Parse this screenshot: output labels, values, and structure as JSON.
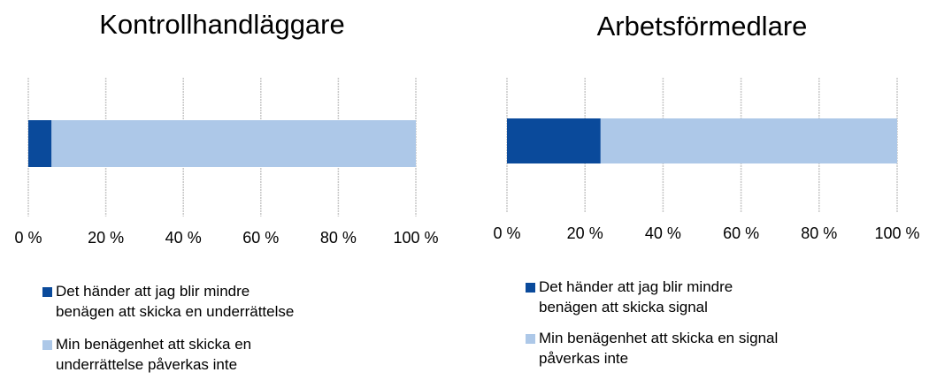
{
  "chart_data": [
    {
      "type": "stacked-barh",
      "title": "Kontrollhandläggare",
      "categories": [
        null
      ],
      "series": [
        {
          "name": "Det händer att jag blir mindre benägen att skicka en underrättelse",
          "color": "#0a4a9b",
          "values": [
            6
          ]
        },
        {
          "name": "Min benägenhet att skicka en underrättelse påverkas inte",
          "color": "#adc8e8",
          "values": [
            94
          ]
        }
      ],
      "xlim": [
        0,
        100
      ],
      "xticks": [
        {
          "value": 0,
          "label": "0 %"
        },
        {
          "value": 20,
          "label": "20 %"
        },
        {
          "value": 40,
          "label": "40 %"
        },
        {
          "value": 60,
          "label": "60 %"
        },
        {
          "value": 80,
          "label": "80 %"
        },
        {
          "value": 100,
          "label": "100 %"
        }
      ],
      "grid": true,
      "legend": "bottom"
    },
    {
      "type": "stacked-barh",
      "title": "Arbetsförmedlare",
      "categories": [
        null
      ],
      "series": [
        {
          "name": "Det händer att jag blir mindre benägen att skicka signal",
          "color": "#0a4a9b",
          "values": [
            24
          ]
        },
        {
          "name": "Min benägenhet att skicka en signal påverkas inte",
          "color": "#adc8e8",
          "values": [
            76
          ]
        }
      ],
      "xlim": [
        0,
        100
      ],
      "xticks": [
        {
          "value": 0,
          "label": "0 %"
        },
        {
          "value": 20,
          "label": "20 %"
        },
        {
          "value": 40,
          "label": "40 %"
        },
        {
          "value": 60,
          "label": "60 %"
        },
        {
          "value": 80,
          "label": "80 %"
        },
        {
          "value": 100,
          "label": "100 %"
        }
      ],
      "grid": true,
      "legend": "bottom"
    }
  ]
}
